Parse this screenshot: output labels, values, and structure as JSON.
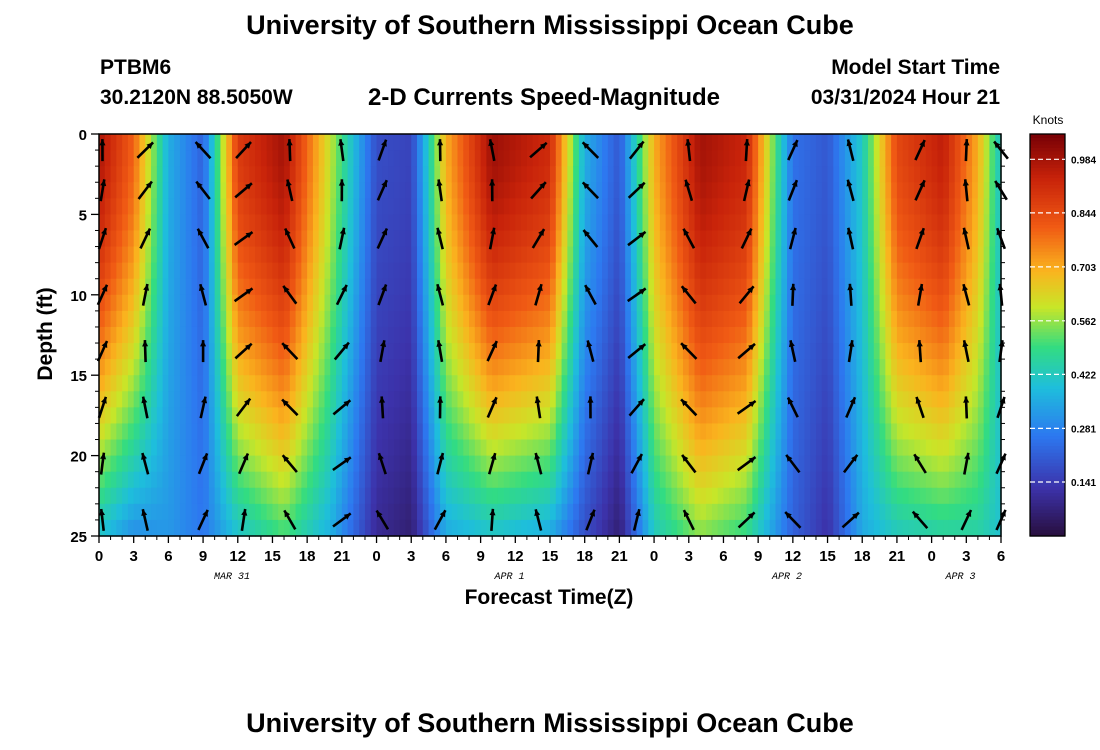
{
  "header": {
    "title": "University of Southern Mississippi Ocean Cube",
    "station": "PTBM6",
    "coordinates": "30.2120N  88.5050W",
    "variable": "2-D Currents Speed-Magnitude",
    "model_start_label": "Model Start Time",
    "model_start_value": "03/31/2024 Hour 21"
  },
  "footer": {
    "title": "University of Southern Mississippi Ocean Cube"
  },
  "chart_data": {
    "type": "heatmap",
    "title": "2-D Currents Speed-Magnitude",
    "xlabel": "Forecast Time(Z)",
    "ylabel": "Depth (ft)",
    "xlim": [
      0,
      78
    ],
    "ylim": [
      0,
      25
    ],
    "x_ticks_hours": [
      0,
      3,
      6,
      9,
      12,
      15,
      18,
      21,
      24,
      27,
      30,
      33,
      36,
      39,
      42,
      45,
      48,
      51,
      54,
      57,
      60,
      63,
      66,
      69,
      72,
      75,
      78
    ],
    "x_tick_labels": [
      "0",
      "3",
      "6",
      "9",
      "12",
      "15",
      "18",
      "21",
      "0",
      "3",
      "6",
      "9",
      "12",
      "15",
      "18",
      "21",
      "0",
      "3",
      "6",
      "9",
      "12",
      "15",
      "18",
      "21",
      "0",
      "3",
      "6"
    ],
    "y_ticks": [
      0,
      5,
      10,
      15,
      20,
      25
    ],
    "date_labels": [
      {
        "text": "MAR 31",
        "hour": 11.5
      },
      {
        "text": "APR 1",
        "hour": 35.5
      },
      {
        "text": "APR 2",
        "hour": 59.5
      },
      {
        "text": "APR 3",
        "hour": 74.5
      }
    ],
    "colorbar": {
      "label": "Knots",
      "min": 0.0,
      "max": 1.05,
      "ticks": [
        0.141,
        0.281,
        0.422,
        0.562,
        0.703,
        0.844,
        0.984
      ]
    },
    "speed_profile": [
      {
        "hour": 0,
        "surface": 0.98,
        "bottom": 0.4
      },
      {
        "hour": 3,
        "surface": 0.8,
        "bottom": 0.3
      },
      {
        "hour": 6,
        "surface": 0.36,
        "bottom": 0.32
      },
      {
        "hour": 9,
        "surface": 0.22,
        "bottom": 0.26
      },
      {
        "hour": 12,
        "surface": 0.88,
        "bottom": 0.4
      },
      {
        "hour": 16,
        "surface": 0.99,
        "bottom": 0.5
      },
      {
        "hour": 20,
        "surface": 0.6,
        "bottom": 0.36
      },
      {
        "hour": 24,
        "surface": 0.18,
        "bottom": 0.1
      },
      {
        "hour": 27,
        "surface": 0.16,
        "bottom": 0.06
      },
      {
        "hour": 30,
        "surface": 0.7,
        "bottom": 0.35
      },
      {
        "hour": 34,
        "surface": 1.0,
        "bottom": 0.4
      },
      {
        "hour": 39,
        "surface": 0.92,
        "bottom": 0.35
      },
      {
        "hour": 42,
        "surface": 0.36,
        "bottom": 0.18
      },
      {
        "hour": 45,
        "surface": 0.2,
        "bottom": 0.06
      },
      {
        "hour": 48,
        "surface": 0.7,
        "bottom": 0.42
      },
      {
        "hour": 52,
        "surface": 0.99,
        "bottom": 0.55
      },
      {
        "hour": 56,
        "surface": 0.93,
        "bottom": 0.48
      },
      {
        "hour": 60,
        "surface": 0.25,
        "bottom": 0.22
      },
      {
        "hour": 63,
        "surface": 0.2,
        "bottom": 0.12
      },
      {
        "hour": 66,
        "surface": 0.42,
        "bottom": 0.35
      },
      {
        "hour": 69,
        "surface": 0.85,
        "bottom": 0.42
      },
      {
        "hour": 73,
        "surface": 0.95,
        "bottom": 0.45
      },
      {
        "hour": 76,
        "surface": 0.7,
        "bottom": 0.45
      },
      {
        "hour": 78,
        "surface": 0.4,
        "bottom": 0.4
      }
    ],
    "vector_columns_hours": [
      0.3,
      4,
      9,
      12.5,
      16.5,
      21,
      24.5,
      29.5,
      34,
      38,
      42.5,
      46.5,
      51,
      56,
      60,
      65,
      71,
      75,
      78
    ]
  }
}
